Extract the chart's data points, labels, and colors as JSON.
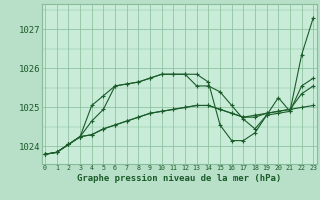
{
  "title": "Graphe pression niveau de la mer (hPa)",
  "hours": [
    0,
    1,
    2,
    3,
    4,
    5,
    6,
    7,
    8,
    9,
    10,
    11,
    12,
    13,
    14,
    15,
    16,
    17,
    18,
    19,
    20,
    21,
    22,
    23
  ],
  "yticks": [
    1024,
    1025,
    1026,
    1027
  ],
  "ylim": [
    1023.55,
    1027.65
  ],
  "xlim": [
    -0.3,
    23.3
  ],
  "bg_color": "#b8dfc8",
  "plot_bg_color": "#c8ecd8",
  "grid_color": "#88bb99",
  "line_color": "#1a5c2a",
  "series": [
    [
      1023.8,
      1023.85,
      1024.05,
      1024.25,
      1025.05,
      1025.3,
      1025.55,
      1025.6,
      1025.65,
      1025.75,
      1025.85,
      1025.85,
      1025.85,
      1025.55,
      1025.55,
      1025.4,
      1025.05,
      1024.7,
      1024.45,
      1024.8,
      1025.25,
      1024.9,
      1026.35,
      1027.3
    ],
    [
      1023.8,
      1023.85,
      1024.05,
      1024.25,
      1024.65,
      1024.95,
      1025.55,
      1025.6,
      1025.65,
      1025.75,
      1025.85,
      1025.85,
      1025.85,
      1025.85,
      1025.65,
      1024.55,
      1024.15,
      1024.15,
      1024.35,
      1024.8,
      1024.85,
      1024.9,
      1025.55,
      1025.75
    ],
    [
      1023.8,
      1023.85,
      1024.05,
      1024.25,
      1024.3,
      1024.45,
      1024.55,
      1024.65,
      1024.75,
      1024.85,
      1024.9,
      1024.95,
      1025.0,
      1025.05,
      1025.05,
      1024.95,
      1024.85,
      1024.75,
      1024.75,
      1024.85,
      1024.9,
      1024.95,
      1025.0,
      1025.05
    ],
    [
      1023.8,
      1023.85,
      1024.05,
      1024.25,
      1024.3,
      1024.45,
      1024.55,
      1024.65,
      1024.75,
      1024.85,
      1024.9,
      1024.95,
      1025.0,
      1025.05,
      1025.05,
      1024.95,
      1024.85,
      1024.75,
      1024.8,
      1024.85,
      1024.9,
      1024.95,
      1025.35,
      1025.55
    ]
  ]
}
